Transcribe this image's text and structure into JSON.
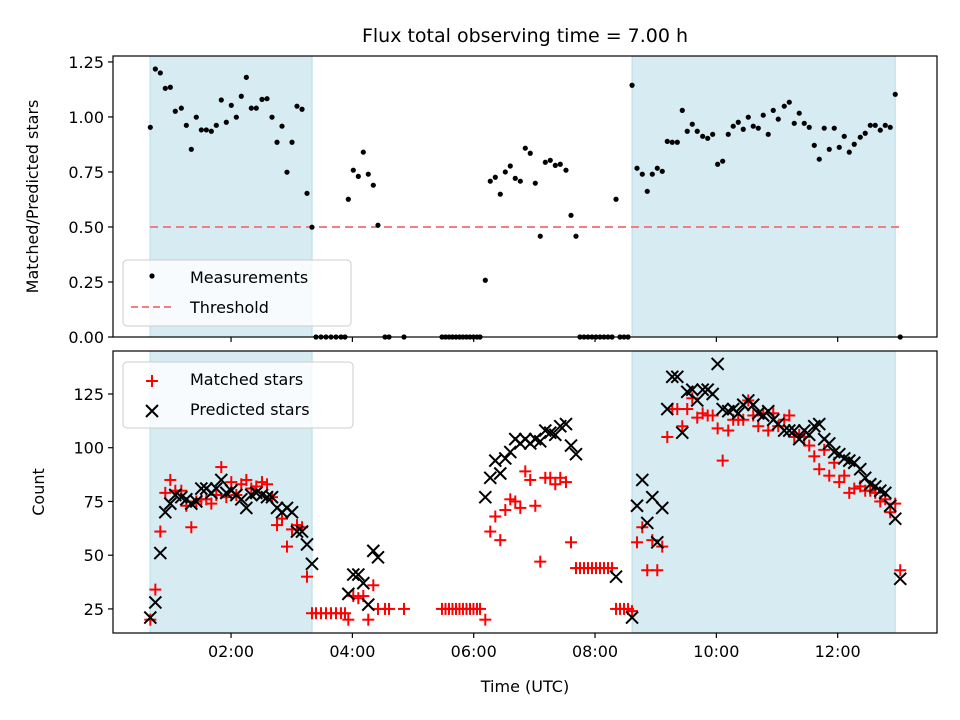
{
  "figure": {
    "title": "Flux total observing time = 7.00 h"
  },
  "chart_data": [
    {
      "type": "scatter",
      "panel": "top",
      "title": "Flux total observing time = 7.00 h",
      "xlabel": "",
      "ylabel": "Matched/Predicted stars",
      "xlim": [
        0.054,
        13.637
      ],
      "ylim": [
        0.0,
        1.277
      ],
      "x_unit": "hours UTC",
      "xticks": [
        2,
        4,
        6,
        8,
        10,
        12
      ],
      "xtick_labels": [
        "",
        "",
        "",
        "",
        "",
        ""
      ],
      "yticks": [
        0.0,
        0.25,
        0.5,
        0.75,
        1.0,
        1.25
      ],
      "ytick_labels": [
        "0.00",
        "0.25",
        "0.50",
        "0.75",
        "1.00",
        "1.25"
      ],
      "grid": false,
      "legend": {
        "placement": "lower-left",
        "entries": [
          "Measurements",
          "Threshold"
        ]
      },
      "shaded_spans": [
        {
          "x0": 0.664,
          "x1": 3.336,
          "color": "#add8e6"
        },
        {
          "x0": 8.61,
          "x1": 12.949,
          "color": "#add8e6"
        }
      ],
      "threshold": {
        "name": "Threshold",
        "y": 0.5,
        "x0": 0.664,
        "x1": 13.031,
        "color": "#f08080",
        "style": "dashed"
      },
      "series": [
        {
          "name": "Measurements",
          "marker": "dot",
          "color": "#000000",
          "x": [
            0.669,
            0.752,
            0.834,
            0.916,
            0.999,
            1.081,
            1.18,
            1.263,
            1.345,
            1.427,
            1.51,
            1.592,
            1.675,
            1.757,
            1.839,
            1.922,
            2.004,
            2.087,
            2.169,
            2.252,
            2.334,
            2.416,
            2.51,
            2.593,
            2.675,
            2.758,
            2.84,
            2.922,
            3.005,
            3.087,
            3.17,
            3.252,
            3.334,
            3.4,
            3.483,
            3.565,
            3.648,
            3.73,
            3.812,
            3.878,
            3.933,
            4.015,
            4.098,
            4.18,
            4.262,
            4.345,
            4.422,
            4.538,
            4.604,
            4.851,
            5.477,
            5.535,
            5.593,
            5.65,
            5.708,
            5.766,
            5.823,
            5.881,
            5.939,
            5.996,
            6.054,
            6.104,
            6.191,
            6.273,
            6.356,
            6.438,
            6.521,
            6.603,
            6.685,
            6.768,
            6.85,
            6.932,
            7.015,
            7.097,
            7.18,
            7.262,
            7.345,
            7.427,
            7.521,
            7.604,
            7.686,
            7.752,
            7.818,
            7.884,
            7.95,
            8.016,
            8.082,
            8.148,
            8.214,
            8.28,
            8.346,
            8.412,
            8.478,
            8.544,
            8.61,
            8.692,
            8.779,
            8.861,
            8.944,
            9.026,
            9.108,
            9.191,
            9.273,
            9.356,
            9.438,
            9.52,
            9.603,
            9.685,
            9.774,
            9.857,
            9.939,
            10.021,
            10.104,
            10.196,
            10.278,
            10.361,
            10.443,
            10.526,
            10.608,
            10.691,
            10.773,
            10.855,
            10.938,
            11.02,
            11.119,
            11.202,
            11.284,
            11.366,
            11.449,
            11.531,
            11.614,
            11.696,
            11.778,
            11.861,
            11.943,
            12.026,
            12.108,
            12.191,
            12.273,
            12.372,
            12.454,
            12.537,
            12.619,
            12.702,
            12.784,
            12.866,
            12.949,
            13.031
          ],
          "y": [
            0.953,
            1.218,
            1.2,
            1.13,
            1.135,
            1.026,
            1.04,
            0.962,
            0.853,
            0.999,
            0.941,
            0.941,
            0.935,
            0.962,
            1.077,
            0.976,
            1.053,
            0.999,
            1.094,
            1.18,
            1.04,
            1.04,
            1.08,
            1.083,
            0.999,
            0.885,
            0.958,
            0.749,
            0.885,
            1.049,
            1.035,
            0.653,
            0.499,
            0,
            0,
            0,
            0,
            0,
            0,
            0,
            0.626,
            0.758,
            0.73,
            0.84,
            0.74,
            0.69,
            0.508,
            0,
            0,
            0,
            0,
            0,
            0,
            0,
            0,
            0,
            0,
            0,
            0,
            0,
            0,
            0,
            0.258,
            0.708,
            0.726,
            0.649,
            0.75,
            0.777,
            0.721,
            0.708,
            0.858,
            0.835,
            0.699,
            0.458,
            0.794,
            0.803,
            0.78,
            0.785,
            0.758,
            0.553,
            0.458,
            0,
            0,
            0,
            0,
            0,
            0,
            0,
            0,
            0,
            0.626,
            0,
            0,
            0,
            1.144,
            0.767,
            0.74,
            0.662,
            0.74,
            0.767,
            0.753,
            0.889,
            0.885,
            0.885,
            1.03,
            0.935,
            0.967,
            0.935,
            0.912,
            0.903,
            0.921,
            0.785,
            0.799,
            0.921,
            0.958,
            0.976,
            0.944,
            0.999,
            0.958,
            0.949,
            1.008,
            0.921,
            1.03,
            0.99,
            1.049,
            1.067,
            0.971,
            1.017,
            0.971,
            0.953,
            0.871,
            0.808,
            0.949,
            0.853,
            0.949,
            0.862,
            0.912,
            0.84,
            0.876,
            0.908,
            0.926,
            0.962,
            0.962,
            0.94,
            0.962,
            0.953,
            1.103,
            0
          ]
        }
      ]
    },
    {
      "type": "scatter",
      "panel": "bottom",
      "title": "",
      "xlabel": "Time (UTC)",
      "ylabel": "Count",
      "xlim": [
        0.054,
        13.637
      ],
      "ylim": [
        13.8,
        145
      ],
      "x_unit": "hours UTC",
      "xticks": [
        2,
        4,
        6,
        8,
        10,
        12
      ],
      "xtick_labels": [
        "02:00",
        "04:00",
        "06:00",
        "08:00",
        "10:00",
        "12:00"
      ],
      "yticks": [
        25,
        50,
        75,
        100,
        125
      ],
      "ytick_labels": [
        "25",
        "50",
        "75",
        "100",
        "125"
      ],
      "grid": false,
      "legend": {
        "placement": "top-left",
        "entries": [
          "Matched stars",
          "Predicted stars"
        ]
      },
      "shaded_spans": [
        {
          "x0": 0.664,
          "x1": 3.336,
          "color": "#add8e6"
        },
        {
          "x0": 8.61,
          "x1": 12.949,
          "color": "#add8e6"
        }
      ],
      "series": [
        {
          "name": "Matched stars",
          "marker": "plus",
          "color": "#ff0000",
          "x": [
            0.669,
            0.752,
            0.834,
            0.916,
            0.999,
            1.081,
            1.18,
            1.263,
            1.345,
            1.427,
            1.51,
            1.592,
            1.675,
            1.757,
            1.839,
            1.922,
            2.004,
            2.087,
            2.169,
            2.252,
            2.334,
            2.416,
            2.51,
            2.593,
            2.675,
            2.758,
            2.84,
            2.922,
            3.005,
            3.087,
            3.17,
            3.252,
            3.334,
            3.4,
            3.483,
            3.565,
            3.648,
            3.73,
            3.812,
            3.878,
            3.933,
            4.015,
            4.098,
            4.18,
            4.262,
            4.345,
            4.422,
            4.538,
            4.604,
            4.851,
            5.477,
            5.535,
            5.593,
            5.65,
            5.708,
            5.766,
            5.823,
            5.881,
            5.939,
            5.996,
            6.054,
            6.104,
            6.191,
            6.273,
            6.356,
            6.438,
            6.521,
            6.603,
            6.685,
            6.768,
            6.85,
            6.932,
            7.015,
            7.097,
            7.18,
            7.262,
            7.345,
            7.427,
            7.521,
            7.604,
            7.686,
            7.752,
            7.818,
            7.884,
            7.95,
            8.016,
            8.082,
            8.148,
            8.214,
            8.28,
            8.346,
            8.412,
            8.478,
            8.544,
            8.61,
            8.692,
            8.779,
            8.861,
            8.944,
            9.026,
            9.108,
            9.191,
            9.273,
            9.356,
            9.438,
            9.52,
            9.603,
            9.685,
            9.774,
            9.857,
            9.939,
            10.021,
            10.104,
            10.196,
            10.278,
            10.361,
            10.443,
            10.526,
            10.608,
            10.691,
            10.773,
            10.855,
            10.938,
            11.02,
            11.119,
            11.202,
            11.284,
            11.366,
            11.449,
            11.531,
            11.614,
            11.696,
            11.778,
            11.861,
            11.943,
            12.026,
            12.108,
            12.191,
            12.273,
            12.372,
            12.454,
            12.537,
            12.619,
            12.702,
            12.784,
            12.866,
            12.949,
            13.031
          ],
          "y": [
            20,
            34,
            61,
            79,
            85,
            80,
            80,
            73,
            63,
            75,
            76,
            76,
            74,
            78,
            91,
            77,
            84,
            78,
            83,
            85,
            81,
            82,
            84,
            83,
            77,
            64,
            67,
            54,
            62,
            64,
            63,
            40,
            23,
            23,
            23,
            23,
            23,
            23,
            23,
            23,
            20,
            31,
            30,
            31,
            20,
            36,
            25,
            25,
            25,
            25,
            25,
            25,
            25,
            25,
            25,
            25,
            25,
            25,
            25,
            25,
            25,
            25,
            20,
            61,
            68,
            57,
            71,
            76,
            75,
            72,
            89,
            85,
            73,
            47,
            86,
            86,
            83,
            86,
            84,
            56,
            44,
            44,
            44,
            44,
            44,
            44,
            44,
            44,
            44,
            44,
            25,
            25,
            25,
            25,
            24,
            56,
            63,
            43,
            57,
            43,
            54,
            105,
            118,
            118,
            110,
            118,
            123,
            114,
            116,
            115,
            115,
            109,
            94,
            108,
            113,
            113,
            113,
            122,
            115,
            110,
            116,
            108,
            116,
            110,
            113,
            115,
            105,
            106,
            105,
            101,
            96,
            90,
            99,
            87,
            93,
            84,
            87,
            79,
            81,
            82,
            80,
            80,
            79,
            75,
            76,
            70,
            74,
            43
          ]
        },
        {
          "name": "Predicted stars",
          "marker": "x",
          "color": "#000000",
          "x": [
            0.669,
            0.752,
            0.834,
            0.916,
            0.999,
            1.081,
            1.18,
            1.263,
            1.345,
            1.427,
            1.51,
            1.592,
            1.675,
            1.757,
            1.839,
            1.922,
            2.004,
            2.087,
            2.169,
            2.252,
            2.334,
            2.416,
            2.51,
            2.593,
            2.675,
            2.758,
            2.84,
            2.922,
            3.005,
            3.087,
            3.17,
            3.252,
            3.334,
            3.933,
            4.015,
            4.098,
            4.18,
            4.262,
            4.345,
            4.422,
            6.191,
            6.273,
            6.356,
            6.438,
            6.521,
            6.603,
            6.685,
            6.768,
            6.85,
            6.932,
            7.015,
            7.097,
            7.18,
            7.262,
            7.345,
            7.427,
            7.521,
            7.604,
            7.686,
            8.346,
            8.61,
            8.692,
            8.779,
            8.861,
            8.944,
            9.026,
            9.108,
            9.191,
            9.273,
            9.356,
            9.438,
            9.52,
            9.603,
            9.685,
            9.774,
            9.857,
            9.939,
            10.021,
            10.104,
            10.196,
            10.278,
            10.361,
            10.443,
            10.526,
            10.608,
            10.691,
            10.773,
            10.855,
            10.938,
            11.02,
            11.119,
            11.202,
            11.284,
            11.366,
            11.449,
            11.531,
            11.614,
            11.696,
            11.778,
            11.861,
            11.943,
            12.026,
            12.108,
            12.191,
            12.273,
            12.372,
            12.454,
            12.537,
            12.619,
            12.702,
            12.784,
            12.866,
            12.949,
            13.031
          ],
          "y": [
            21,
            28,
            51,
            70,
            74,
            78,
            77,
            76,
            74,
            75,
            81,
            81,
            79,
            81,
            85,
            79,
            80,
            78,
            76,
            72,
            78,
            79,
            78,
            77,
            77,
            72,
            70,
            72,
            70,
            61,
            61,
            55,
            46,
            32,
            41,
            41,
            37,
            27,
            52,
            49,
            77,
            86,
            94,
            88,
            95,
            98,
            104,
            102,
            104,
            102,
            104,
            103,
            108,
            107,
            106,
            110,
            111,
            101,
            97,
            40,
            21,
            73,
            85,
            65,
            77,
            56,
            72,
            118,
            133,
            133,
            107,
            126,
            127,
            122,
            127,
            127,
            125,
            139,
            118,
            117,
            118,
            116,
            120,
            122,
            120,
            116,
            115,
            117,
            113,
            111,
            108,
            108,
            108,
            104,
            108,
            106,
            110,
            111,
            104,
            102,
            98,
            97,
            95,
            94,
            93,
            90,
            86,
            83,
            82,
            80,
            79,
            73,
            67,
            39
          ]
        }
      ]
    }
  ]
}
